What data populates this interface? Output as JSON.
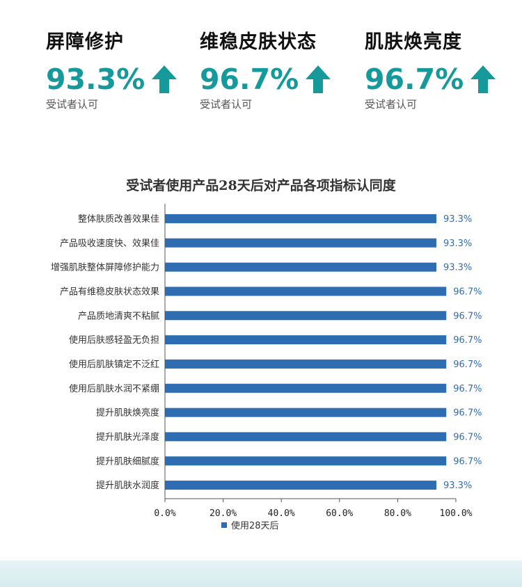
{
  "stats": [
    {
      "title": "屏障修护",
      "value": "93.3%",
      "note": "受试者认可",
      "icon": "arrow-up-icon"
    },
    {
      "title": "维稳皮肤状态",
      "value": "96.7%",
      "note": "受试者认可",
      "icon": "arrow-up-icon"
    },
    {
      "title": "肌肤焕亮度",
      "value": "96.7%",
      "note": "受试者认可",
      "icon": "arrow-up-icon"
    }
  ],
  "colors": {
    "accent": "#15999a",
    "bar": "#2f6db3",
    "label_value": "#2f6db3"
  },
  "chart_data": {
    "type": "bar",
    "orientation": "horizontal",
    "title": "受试者使用产品28天后对产品各项指标认同度",
    "categories": [
      "整体肤质改善效果佳",
      "产品吸收速度快、效果佳",
      "增强肌肤整体屏障修护能力",
      "产品有维稳皮肤状态效果",
      "产品质地清爽不粘腻",
      "使用后肤感轻盈无负担",
      "使用后肌肤镇定不泛红",
      "使用后肌肤水润不紧绷",
      "提升肌肤焕亮度",
      "提升肌肤光泽度",
      "提升肌肤细腻度",
      "提升肌肤水润度"
    ],
    "series": [
      {
        "name": "使用28天后",
        "values": [
          93.3,
          93.3,
          93.3,
          96.7,
          96.7,
          96.7,
          96.7,
          96.7,
          96.7,
          96.7,
          96.7,
          93.3
        ],
        "labels": [
          "93.3%",
          "93.3%",
          "93.3%",
          "96.7%",
          "96.7%",
          "96.7%",
          "96.7%",
          "96.7%",
          "96.7%",
          "96.7%",
          "96.7%",
          "93.3%"
        ]
      }
    ],
    "xlim": [
      0,
      100
    ],
    "xticks": [
      "0.0%",
      "20.0%",
      "40.0%",
      "60.0%",
      "80.0%",
      "100.0%"
    ],
    "grid": false,
    "legend": "bottom"
  }
}
